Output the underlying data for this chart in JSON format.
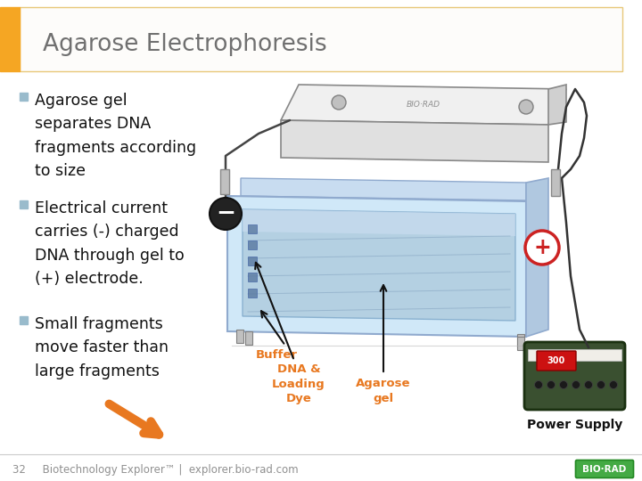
{
  "bg_color": "#ffffff",
  "title": "Agarose Electrophoresis",
  "title_color": "#707070",
  "title_fontsize": 19,
  "title_bar_color": "#F5A623",
  "title_bg_color": "#FDFCFA",
  "title_border_color": "#E8C87A",
  "bullet_color": "#99BBCC",
  "bullet_text_color": "#111111",
  "bullet_fontsize": 12.5,
  "bullet1": "Agarose gel\nseparates DNA\nfragments according\nto size",
  "bullet2": "Electrical current\ncarries (-) charged\nDNA through gel to\n(+) electrode.",
  "bullet3": "Small fragments\nmove faster than\nlarge fragments",
  "footer_text": "32     Biotechnology Explorer™ |  explorer.bio-rad.com",
  "footer_color": "#909090",
  "footer_fontsize": 8.5,
  "orange_arrow_color": "#E87820",
  "label_buffer": "Buffer",
  "label_dna": "DNA &\nLoading\nDye",
  "label_agarose": "Agarose\ngel",
  "label_power": "Power Supply",
  "label_color": "#E87820",
  "label_fontsize": 9.5,
  "gel_outer_color": "#C8E4F4",
  "gel_outer_edge": "#8BBCDA",
  "gel_inner_color": "#A8D0E8",
  "lid_color": "#E0E0E0",
  "lid_edge": "#A8A8A8",
  "minus_circle_color": "#333333",
  "plus_circle_edge": "#CC2222",
  "wire_color": "#444444",
  "arrow_label_color": "#000000"
}
